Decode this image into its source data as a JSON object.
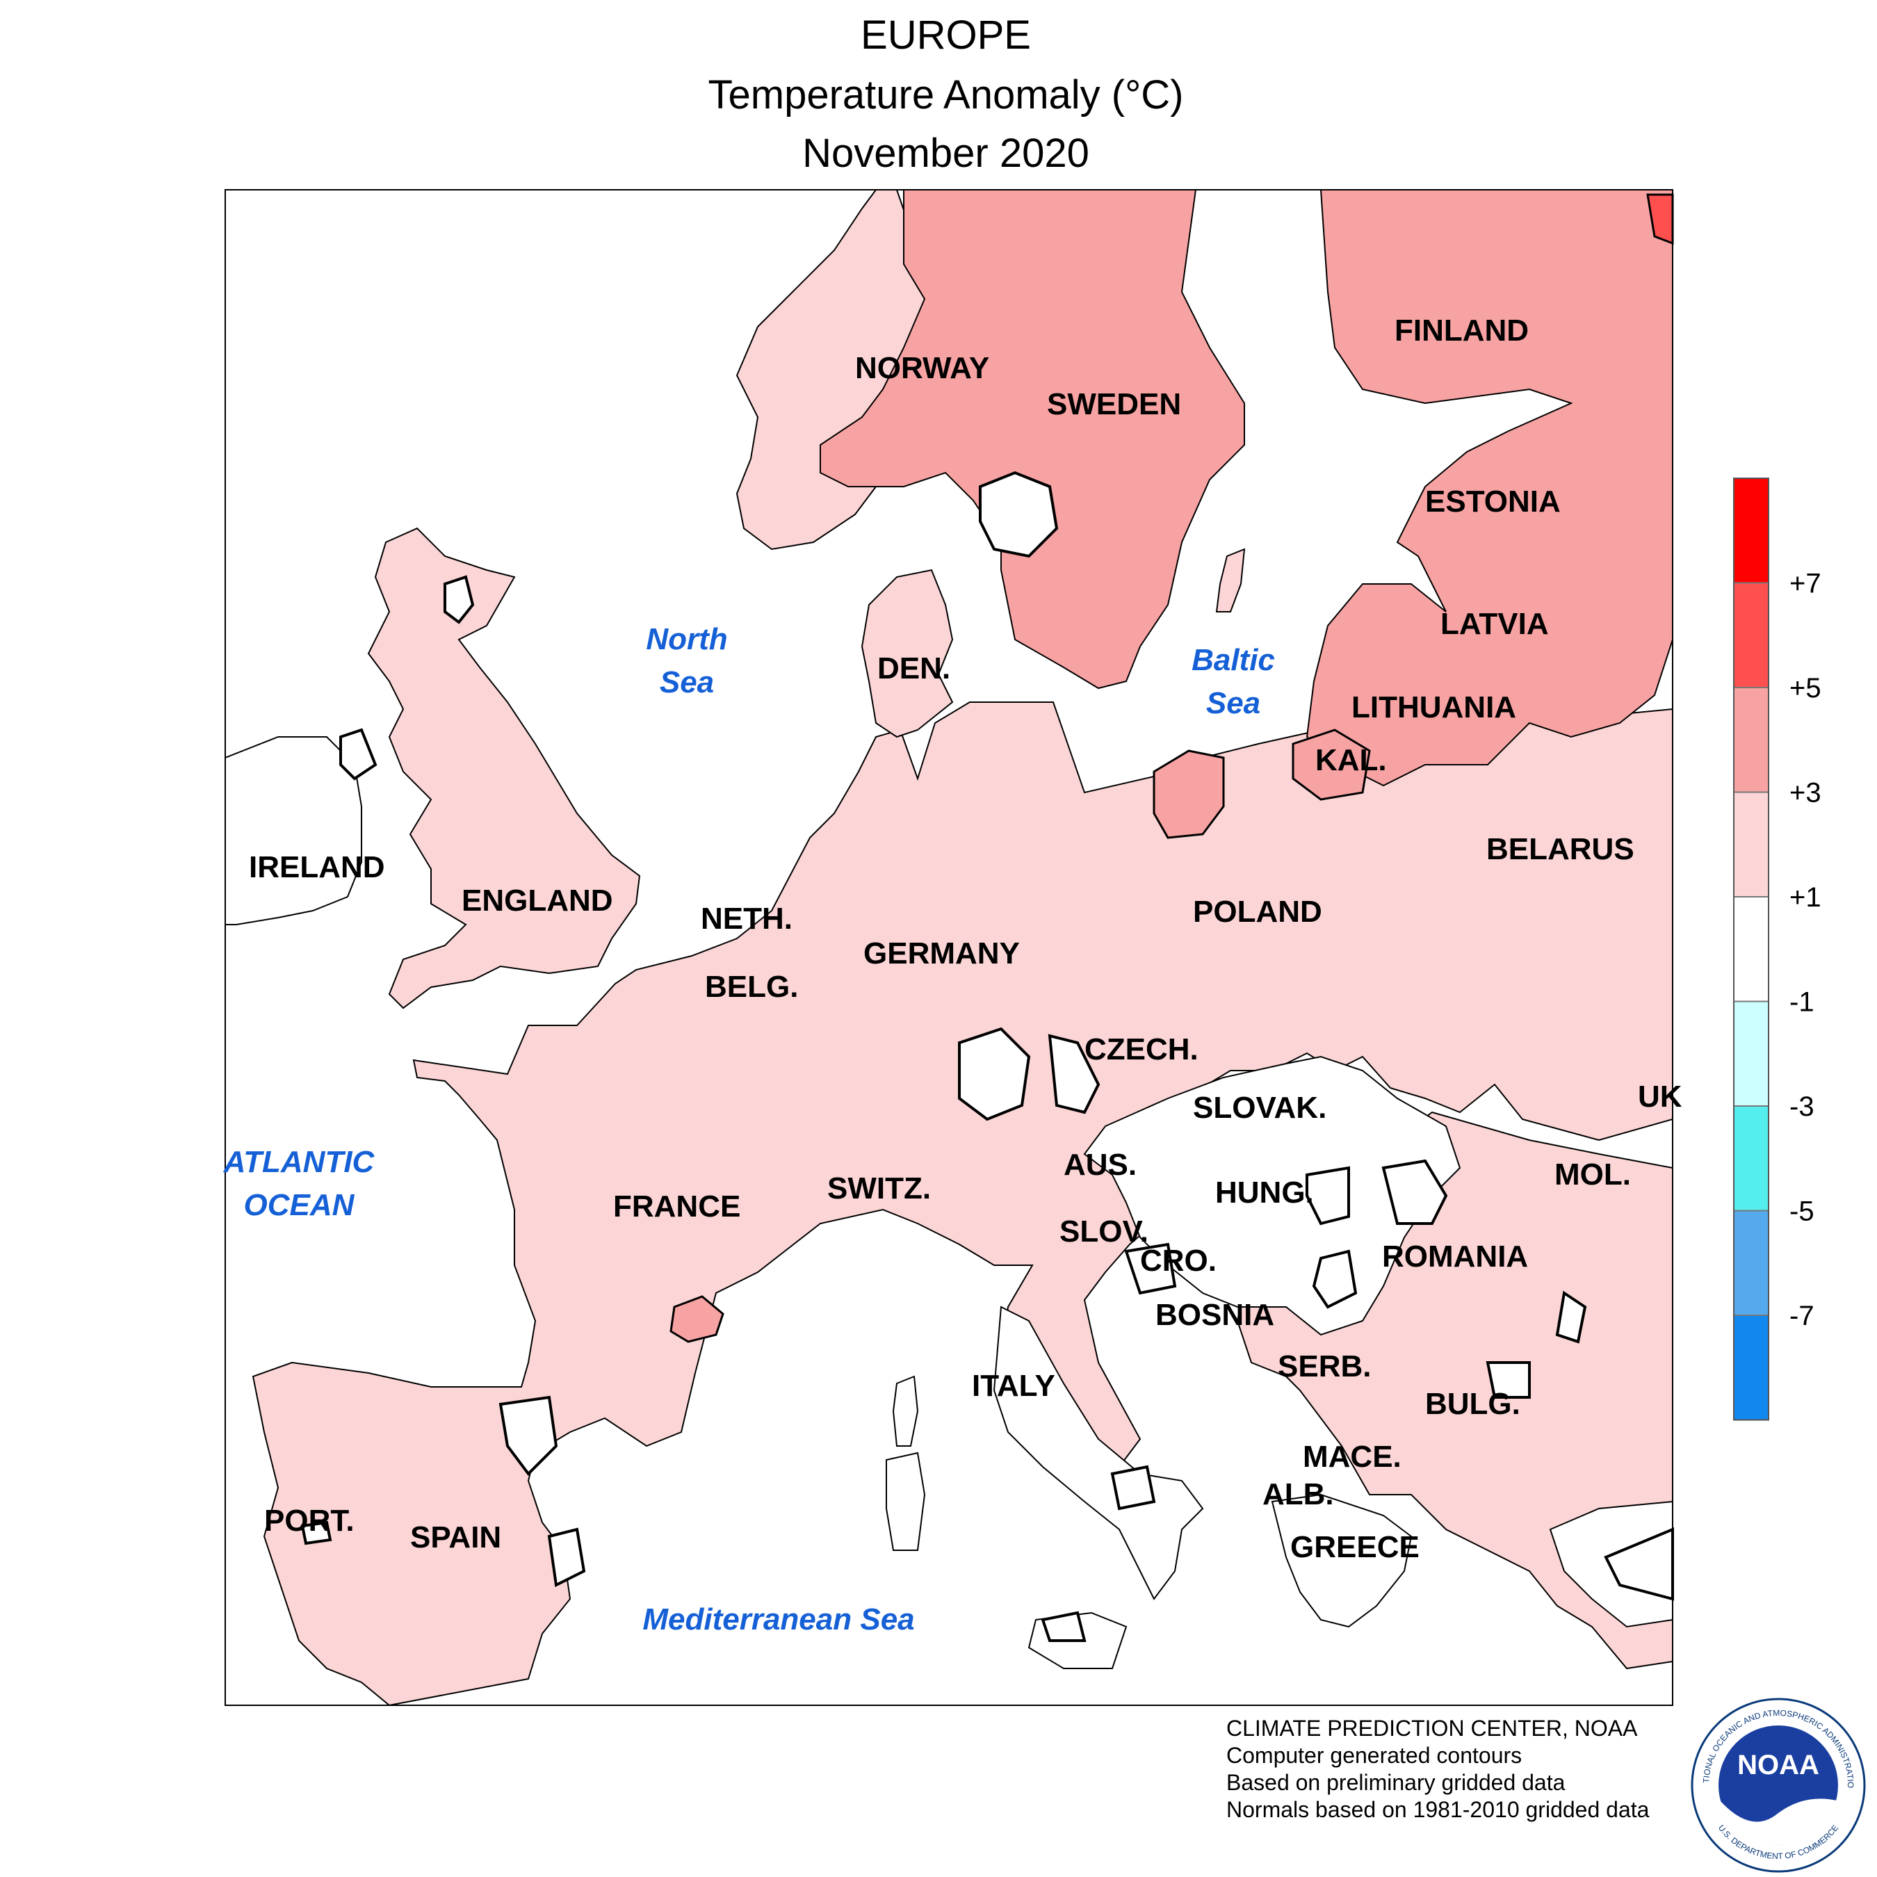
{
  "title": {
    "region": "EUROPE",
    "variable": "Temperature Anomaly (°C)",
    "period": "November 2020"
  },
  "legend": {
    "orientation": "vertical",
    "placement": "right",
    "bins": [
      {
        "min": 7,
        "max": null,
        "color": "#ff0000"
      },
      {
        "min": 5,
        "max": 7,
        "color": "#ff5050"
      },
      {
        "min": 3,
        "max": 5,
        "color": "#f8a3a3"
      },
      {
        "min": 1,
        "max": 3,
        "color": "#fcd6d6"
      },
      {
        "min": -1,
        "max": 1,
        "color": "#ffffff"
      },
      {
        "min": -3,
        "max": -1,
        "color": "#ccffff"
      },
      {
        "min": -5,
        "max": -3,
        "color": "#55eeee"
      },
      {
        "min": -7,
        "max": -5,
        "color": "#55aaee"
      },
      {
        "min": null,
        "max": -7,
        "color": "#1188ee"
      }
    ],
    "tick_labels": [
      "+7",
      "+5",
      "+3",
      "+1",
      "-1",
      "-3",
      "-5",
      "-7"
    ]
  },
  "map": {
    "ocean_color": "#ffffff",
    "contour_color": "#000000",
    "countries": [
      {
        "key": "norway",
        "label": "NORWAY"
      },
      {
        "key": "sweden",
        "label": "SWEDEN"
      },
      {
        "key": "finland",
        "label": "FINLAND"
      },
      {
        "key": "estonia",
        "label": "ESTONIA"
      },
      {
        "key": "latvia",
        "label": "LATVIA"
      },
      {
        "key": "lithuania",
        "label": "LITHUANIA"
      },
      {
        "key": "kaliningrad",
        "label": "KAL."
      },
      {
        "key": "denmark",
        "label": "DEN."
      },
      {
        "key": "ireland",
        "label": "IRELAND"
      },
      {
        "key": "england",
        "label": "ENGLAND"
      },
      {
        "key": "netherlands",
        "label": "NETH."
      },
      {
        "key": "belgium",
        "label": "BELG."
      },
      {
        "key": "germany",
        "label": "GERMANY"
      },
      {
        "key": "poland",
        "label": "POLAND"
      },
      {
        "key": "belarus",
        "label": "BELARUS"
      },
      {
        "key": "czechia",
        "label": "CZECH."
      },
      {
        "key": "slovakia",
        "label": "SLOVAK."
      },
      {
        "key": "ukraine",
        "label": "UK"
      },
      {
        "key": "austria",
        "label": "AUS."
      },
      {
        "key": "hungary",
        "label": "HUNG."
      },
      {
        "key": "moldova",
        "label": "MOL."
      },
      {
        "key": "switzerland",
        "label": "SWITZ."
      },
      {
        "key": "france",
        "label": "FRANCE"
      },
      {
        "key": "slovenia",
        "label": "SLOV."
      },
      {
        "key": "croatia",
        "label": "CRO."
      },
      {
        "key": "romania",
        "label": "ROMANIA"
      },
      {
        "key": "bosnia",
        "label": "BOSNIA"
      },
      {
        "key": "serbia",
        "label": "SERB."
      },
      {
        "key": "italy",
        "label": "ITALY"
      },
      {
        "key": "bulgaria",
        "label": "BULG."
      },
      {
        "key": "macedonia",
        "label": "MACE."
      },
      {
        "key": "albania",
        "label": "ALB."
      },
      {
        "key": "greece",
        "label": "GREECE"
      },
      {
        "key": "portugal",
        "label": "PORT."
      },
      {
        "key": "spain",
        "label": "SPAIN"
      }
    ],
    "seas": [
      {
        "key": "north_sea",
        "lines": [
          "North",
          "Sea"
        ]
      },
      {
        "key": "baltic_sea",
        "lines": [
          "Baltic",
          "Sea"
        ]
      },
      {
        "key": "atlantic_ocean",
        "lines": [
          "ATLANTIC",
          "OCEAN"
        ]
      },
      {
        "key": "mediterranean_sea",
        "lines": [
          "Mediterranean Sea"
        ]
      }
    ]
  },
  "credits": [
    "CLIMATE PREDICTION CENTER, NOAA",
    "Computer generated contours",
    "Based on preliminary gridded data",
    "Normals based on 1981-2010 gridded data"
  ],
  "logo": {
    "icon": "noaa-logo-icon",
    "text": "NOAA",
    "ring_text_top": "NATIONAL OCEANIC AND ATMOSPHERIC ADMINISTRATION",
    "ring_text_bottom": "U.S. DEPARTMENT OF COMMERCE"
  }
}
